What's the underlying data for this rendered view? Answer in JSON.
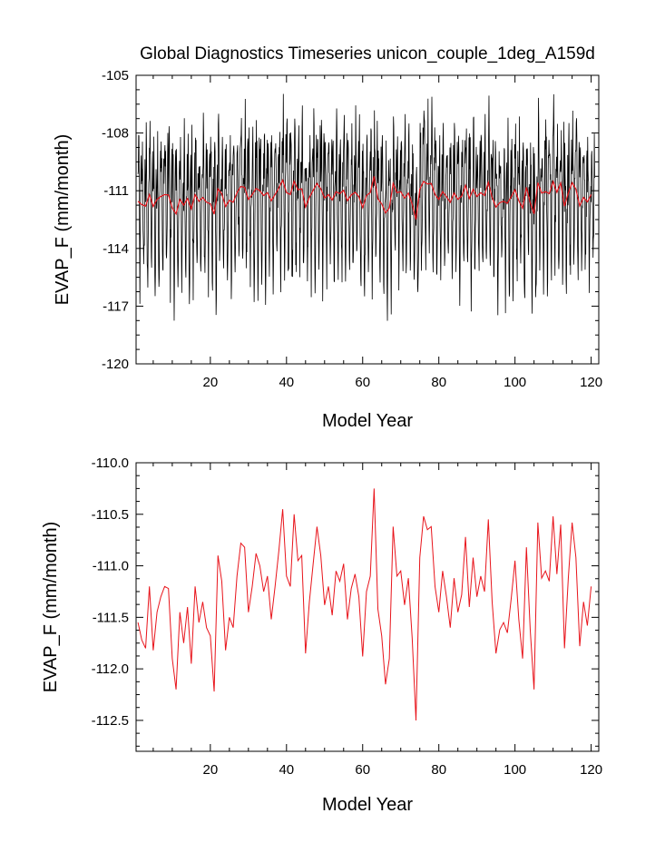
{
  "chart_data": [
    {
      "type": "line",
      "title": "Global Diagnostics Timeseries unicon_couple_1deg_A159d",
      "xlabel": "Model Year",
      "ylabel": "EVAP_F (mm/month)",
      "xlim": [
        0.5,
        122
      ],
      "ylim": [
        -120,
        -105
      ],
      "xticks": [
        20,
        40,
        60,
        80,
        100,
        120
      ],
      "yticks": [
        -120,
        -117,
        -114,
        -111,
        -108,
        -105
      ],
      "ytick_labels": [
        "-120",
        "-117",
        "-114",
        "-111",
        "-108",
        "-105"
      ],
      "grid": false,
      "series": [
        {
          "role": "monthly",
          "color": "#000000",
          "x_start": 1,
          "x_step": 0.0833333,
          "cycle": [
            -110.5,
            -109.2,
            -108.4,
            -109.6,
            -111.8,
            -114.2,
            -115.7,
            -114.6,
            -112.3,
            -110.9,
            -109.8,
            -110.0
          ],
          "noise_amplitude": 1.6,
          "min_value": -118.3,
          "max_value": -105.5
        },
        {
          "role": "annual-mean",
          "color": "#e8141b",
          "x_start": 1,
          "values": [
            -111.55,
            -111.72,
            -111.8,
            -111.2,
            -111.82,
            -111.45,
            -111.3,
            -111.2,
            -111.22,
            -111.9,
            -112.2,
            -111.45,
            -111.75,
            -111.4,
            -111.95,
            -111.2,
            -111.55,
            -111.35,
            -111.6,
            -111.68,
            -112.22,
            -110.9,
            -111.15,
            -111.82,
            -111.5,
            -111.6,
            -111.1,
            -110.78,
            -110.82,
            -111.45,
            -111.2,
            -110.88,
            -111.0,
            -111.25,
            -111.1,
            -111.52,
            -111.2,
            -110.85,
            -110.45,
            -111.1,
            -111.2,
            -110.5,
            -110.95,
            -110.9,
            -111.85,
            -111.35,
            -110.98,
            -110.62,
            -110.9,
            -111.38,
            -111.2,
            -111.48,
            -111.05,
            -111.15,
            -110.98,
            -111.52,
            -111.22,
            -111.08,
            -111.3,
            -111.88,
            -111.25,
            -111.1,
            -110.25,
            -111.42,
            -111.68,
            -112.15,
            -111.9,
            -110.62,
            -111.1,
            -111.05,
            -111.38,
            -111.12,
            -111.7,
            -112.5,
            -110.92,
            -110.52,
            -110.65,
            -110.62,
            -111.2,
            -111.45,
            -111.05,
            -111.3,
            -111.6,
            -111.12,
            -111.45,
            -111.28,
            -110.72,
            -111.4,
            -110.92,
            -111.3,
            -111.1,
            -111.25,
            -110.55,
            -111.35,
            -111.85,
            -111.62,
            -111.55,
            -111.65,
            -111.32,
            -110.95,
            -111.52,
            -111.9,
            -110.82,
            -111.62,
            -112.2,
            -110.58,
            -111.12,
            -111.05,
            -111.15,
            -110.52,
            -111.08,
            -110.6,
            -111.8,
            -111.12,
            -110.58,
            -110.92,
            -111.78,
            -111.35,
            -111.58,
            -111.2
          ]
        }
      ]
    },
    {
      "type": "line",
      "title": "",
      "xlabel": "Model Year",
      "ylabel": "EVAP_F (mm/month)",
      "xlim": [
        0.5,
        122
      ],
      "ylim": [
        -112.8,
        -110.0
      ],
      "xticks": [
        20,
        40,
        60,
        80,
        100,
        120
      ],
      "yticks": [
        -112.5,
        -112.0,
        -111.5,
        -111.0,
        -110.5,
        -110.0
      ],
      "ytick_labels": [
        "-112.5",
        "-112.0",
        "-111.5",
        "-111.0",
        "-110.5",
        "-110.0"
      ],
      "grid": false,
      "series": [
        {
          "role": "annual-mean",
          "color": "#e8141b",
          "x_start": 1,
          "source": "same annual-mean values as the upper panel"
        }
      ]
    }
  ]
}
